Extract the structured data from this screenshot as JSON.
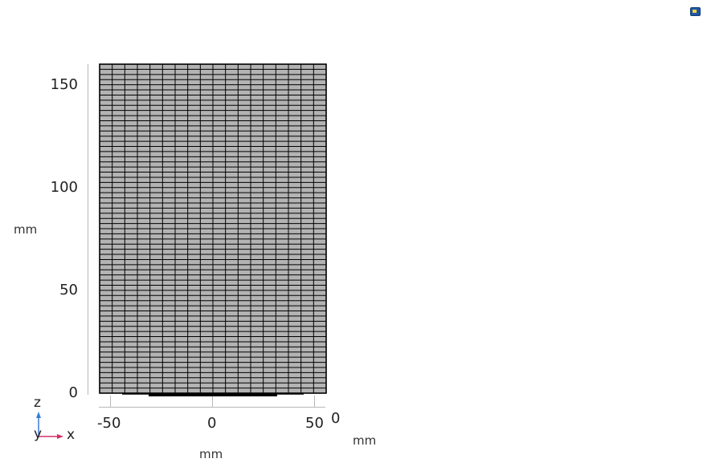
{
  "axes": {
    "y_ticks": [
      "150",
      "100",
      "50",
      "0"
    ],
    "x_ticks": [
      "-50",
      "0",
      "50"
    ],
    "y_unit": "mm",
    "x_unit": "mm",
    "depth_tick": "0",
    "depth_unit": "mm"
  },
  "triad": {
    "z_label": "z",
    "y_label": "y",
    "x_label": "x"
  },
  "mesh": {
    "columns": 18,
    "rows": 64,
    "fill_color": "#b3b3b3",
    "line_color": "#000000"
  },
  "colors": {
    "triad_z": "#3a7bd5",
    "triad_x": "#d0306a"
  },
  "icons": {
    "corner": "comsol-app-icon"
  }
}
